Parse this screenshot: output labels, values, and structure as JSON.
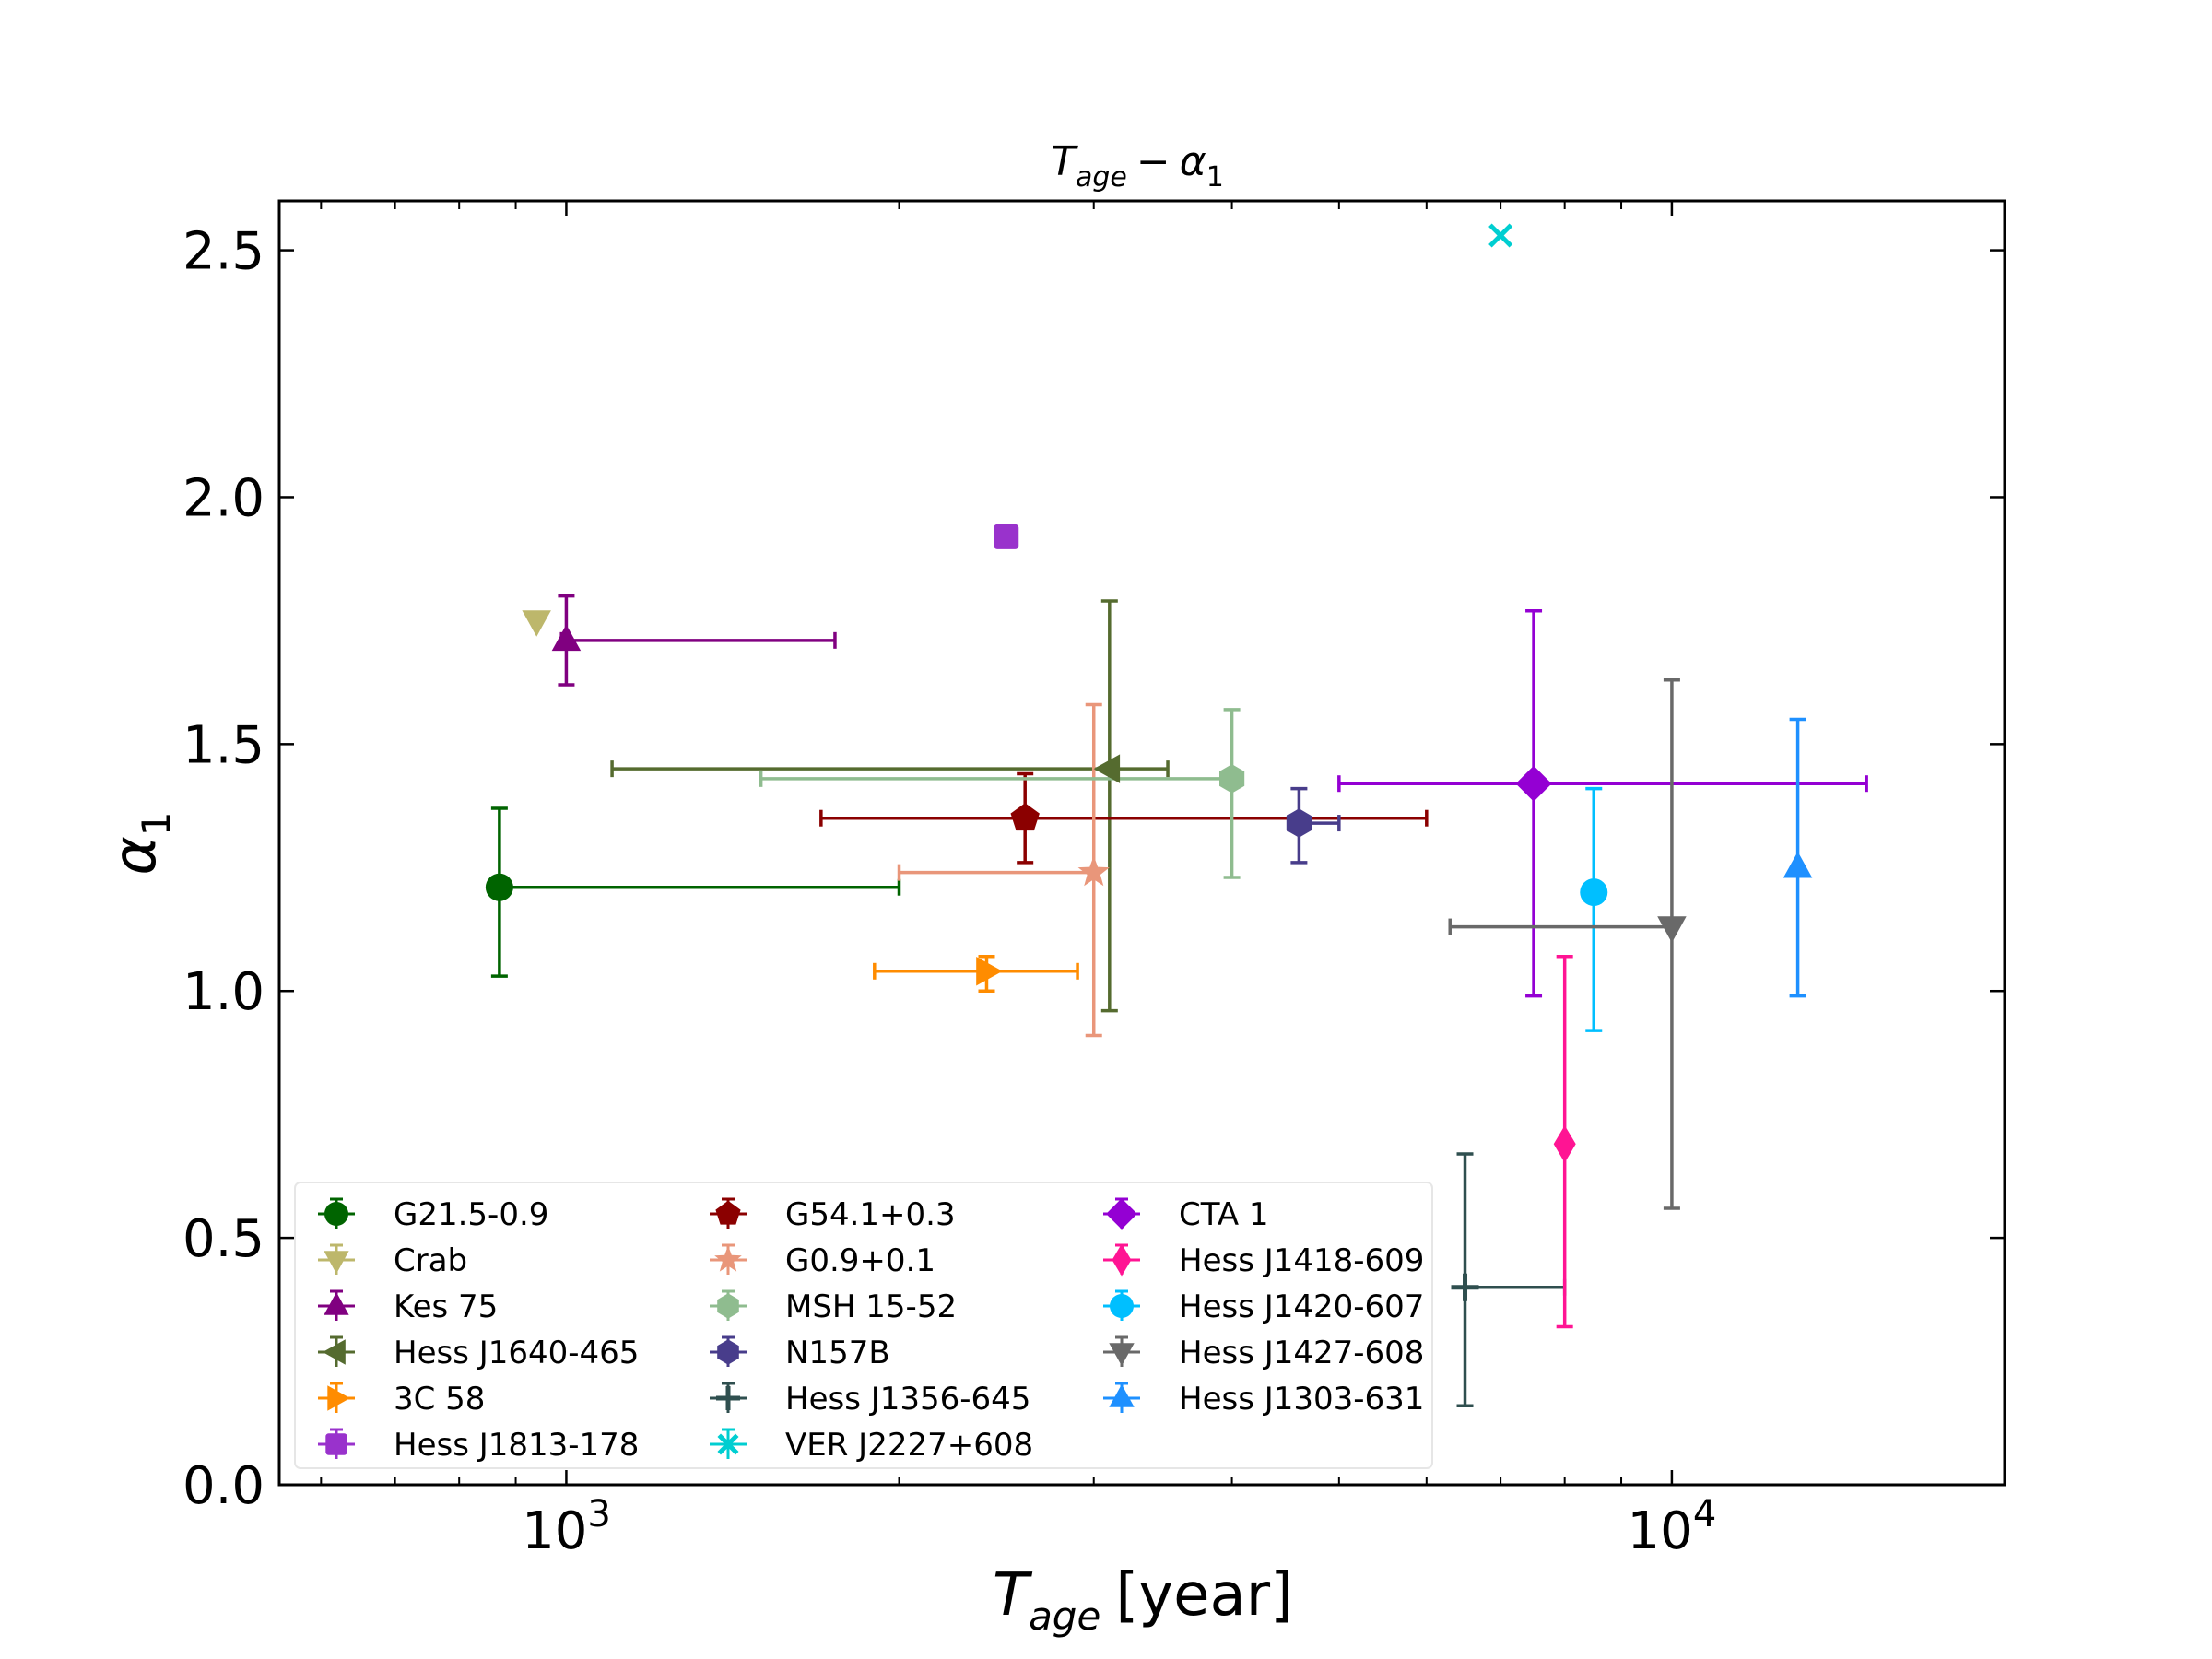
{
  "chart_data": {
    "type": "scatter",
    "title": "T_age − α_1",
    "title_parts": {
      "base": "T",
      "sub": "age",
      "op": "−",
      "base2": "α",
      "sub2": "1"
    },
    "xlabel_parts": {
      "base": "T",
      "sub": "age",
      "rest": "[year]"
    },
    "ylabel_parts": {
      "base": "α",
      "sub": "1"
    },
    "xscale": "log",
    "xlim": [
      550,
      20000
    ],
    "ylim": [
      0.0,
      2.6
    ],
    "xticks_major": [
      {
        "value": 1000,
        "base": "10",
        "exp": "3"
      },
      {
        "value": 10000,
        "base": "10",
        "exp": "4"
      }
    ],
    "yticks": [
      {
        "value": 0.0,
        "label": "0.0"
      },
      {
        "value": 0.5,
        "label": "0.5"
      },
      {
        "value": 1.0,
        "label": "1.0"
      },
      {
        "value": 1.5,
        "label": "1.5"
      },
      {
        "value": 2.0,
        "label": "2.0"
      },
      {
        "value": 2.5,
        "label": "2.5"
      }
    ],
    "legend_placement": "lower-left",
    "series": [
      {
        "name": "G21.5-0.9",
        "color": "#006400",
        "marker": "circle",
        "x": 870,
        "y": 1.21,
        "xerr": [
          870,
          2000
        ],
        "yerr": [
          1.03,
          1.37
        ]
      },
      {
        "name": "Crab",
        "color": "#bdb76b",
        "marker": "triangle-down",
        "x": 940,
        "y": 1.75
      },
      {
        "name": "Kes 75",
        "color": "#800080",
        "marker": "triangle-up",
        "x": 1000,
        "y": 1.71,
        "xerr": [
          990,
          1750
        ],
        "yerr": [
          1.62,
          1.8
        ]
      },
      {
        "name": "Hess J1640-465",
        "color": "#556b2f",
        "marker": "triangle-left",
        "x": 3100,
        "y": 1.45,
        "xerr": [
          1100,
          3500
        ],
        "yerr": [
          0.96,
          1.79
        ]
      },
      {
        "name": "3C 58",
        "color": "#ff8c00",
        "marker": "triangle-right",
        "x": 2400,
        "y": 1.04,
        "xerr": [
          1900,
          2900
        ],
        "yerr": [
          1.0,
          1.07
        ]
      },
      {
        "name": "Hess J1813-178",
        "color": "#9932cc",
        "marker": "square",
        "x": 2500,
        "y": 1.92,
        "xerr": [
          2450,
          2550
        ],
        "yerr": [
          1.9,
          1.94
        ]
      },
      {
        "name": "G54.1+0.3",
        "color": "#8b0000",
        "marker": "pentagon",
        "x": 2600,
        "y": 1.35,
        "xerr": [
          1700,
          6000
        ],
        "yerr": [
          1.26,
          1.44
        ]
      },
      {
        "name": "G0.9+0.1",
        "color": "#e9967a",
        "marker": "star",
        "x": 3000,
        "y": 1.24,
        "xerr": [
          2000,
          3000
        ],
        "yerr": [
          0.91,
          1.58
        ]
      },
      {
        "name": "MSH 15-52",
        "color": "#8fbc8f",
        "marker": "hexagon",
        "x": 4000,
        "y": 1.43,
        "xerr": [
          1500,
          4000
        ],
        "yerr": [
          1.23,
          1.57
        ]
      },
      {
        "name": "N157B",
        "color": "#483d8b",
        "marker": "hexagon",
        "x": 4600,
        "y": 1.34,
        "xerr": [
          4500,
          5000
        ],
        "yerr": [
          1.26,
          1.41
        ]
      },
      {
        "name": "Hess J1356-645",
        "color": "#2f4f4f",
        "marker": "plus",
        "x": 6500,
        "y": 0.4,
        "xerr": [
          6500,
          8000
        ],
        "yerr": [
          0.16,
          0.67
        ]
      },
      {
        "name": "VER J2227+608",
        "color": "#00ced1",
        "marker": "x",
        "x": 7000,
        "y": 2.53
      },
      {
        "name": "CTA 1",
        "color": "#9400d3",
        "marker": "diamond",
        "x": 7500,
        "y": 1.42,
        "xerr": [
          5000,
          15000
        ],
        "yerr": [
          0.99,
          1.77
        ]
      },
      {
        "name": "Hess J1418-609",
        "color": "#ff1493",
        "marker": "thin-diamond",
        "x": 8000,
        "y": 0.69,
        "yerr": [
          0.32,
          1.07
        ]
      },
      {
        "name": "Hess J1420-607",
        "color": "#00bfff",
        "marker": "circle",
        "x": 8500,
        "y": 1.2,
        "yerr": [
          0.92,
          1.41
        ]
      },
      {
        "name": "Hess J1427-608",
        "color": "#696969",
        "marker": "triangle-down",
        "x": 10000,
        "y": 1.13,
        "xerr": [
          6300,
          10000
        ],
        "yerr": [
          0.56,
          1.63
        ]
      },
      {
        "name": "Hess J1303-631",
        "color": "#1e90ff",
        "marker": "triangle-up",
        "x": 13000,
        "y": 1.25,
        "yerr": [
          0.99,
          1.55
        ]
      }
    ]
  }
}
